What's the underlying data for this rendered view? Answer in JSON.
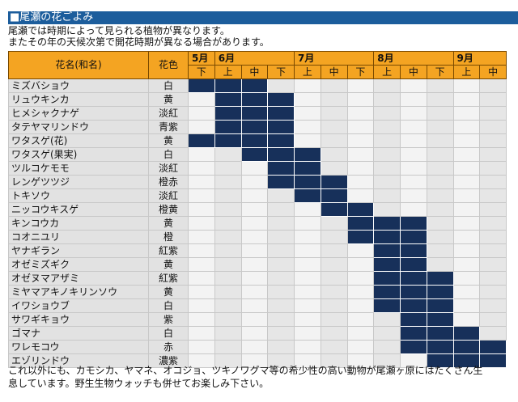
{
  "title": "■尾瀬の花ごよみ",
  "intro": [
    "尾瀬では時期によって見られる植物が異なります。",
    "またその年の天候次第で開花時期が異なる場合があります。"
  ],
  "table": {
    "header": {
      "name": "花名(和名)",
      "color": "花色",
      "months": [
        {
          "label": "5月",
          "periods": [
            "下"
          ]
        },
        {
          "label": "6月",
          "periods": [
            "上",
            "中",
            "下"
          ]
        },
        {
          "label": "7月",
          "periods": [
            "上",
            "中",
            "下"
          ]
        },
        {
          "label": "8月",
          "periods": [
            "上",
            "中",
            "下"
          ]
        },
        {
          "label": "9月",
          "periods": [
            "上",
            "中"
          ]
        }
      ]
    },
    "rows": [
      {
        "name": "ミズバショウ",
        "color": "白",
        "bloom": [
          true,
          true,
          true,
          false,
          false,
          false,
          false,
          false,
          false,
          false,
          false,
          false
        ]
      },
      {
        "name": "リュウキンカ",
        "color": "黄",
        "bloom": [
          false,
          true,
          true,
          true,
          false,
          false,
          false,
          false,
          false,
          false,
          false,
          false
        ]
      },
      {
        "name": "ヒメシャクナゲ",
        "color": "淡紅",
        "bloom": [
          false,
          true,
          true,
          true,
          false,
          false,
          false,
          false,
          false,
          false,
          false,
          false
        ]
      },
      {
        "name": "タテヤマリンドウ",
        "color": "青紫",
        "bloom": [
          false,
          true,
          true,
          true,
          false,
          false,
          false,
          false,
          false,
          false,
          false,
          false
        ]
      },
      {
        "name": "ワタスゲ(花)",
        "color": "黄",
        "bloom": [
          true,
          true,
          true,
          true,
          false,
          false,
          false,
          false,
          false,
          false,
          false,
          false
        ]
      },
      {
        "name": "ワタスゲ(果実)",
        "color": "白",
        "bloom": [
          false,
          false,
          true,
          true,
          true,
          false,
          false,
          false,
          false,
          false,
          false,
          false
        ]
      },
      {
        "name": "ツルコケモモ",
        "color": "淡紅",
        "bloom": [
          false,
          false,
          false,
          true,
          true,
          false,
          false,
          false,
          false,
          false,
          false,
          false
        ]
      },
      {
        "name": "レンゲツツジ",
        "color": "橙赤",
        "bloom": [
          false,
          false,
          false,
          true,
          true,
          true,
          false,
          false,
          false,
          false,
          false,
          false
        ]
      },
      {
        "name": "トキソウ",
        "color": "淡紅",
        "bloom": [
          false,
          false,
          false,
          false,
          true,
          true,
          false,
          false,
          false,
          false,
          false,
          false
        ]
      },
      {
        "name": "ニッコウキスゲ",
        "color": "橙黄",
        "bloom": [
          false,
          false,
          false,
          false,
          false,
          true,
          true,
          false,
          false,
          false,
          false,
          false
        ]
      },
      {
        "name": "キンコウカ",
        "color": "黄",
        "bloom": [
          false,
          false,
          false,
          false,
          false,
          false,
          true,
          true,
          true,
          false,
          false,
          false
        ]
      },
      {
        "name": "コオニユリ",
        "color": "橙",
        "bloom": [
          false,
          false,
          false,
          false,
          false,
          false,
          true,
          true,
          true,
          false,
          false,
          false
        ]
      },
      {
        "name": "ヤナギラン",
        "color": "紅紫",
        "bloom": [
          false,
          false,
          false,
          false,
          false,
          false,
          false,
          true,
          true,
          false,
          false,
          false
        ]
      },
      {
        "name": "オゼミズギク",
        "color": "黄",
        "bloom": [
          false,
          false,
          false,
          false,
          false,
          false,
          false,
          true,
          true,
          false,
          false,
          false
        ]
      },
      {
        "name": "オゼヌマアザミ",
        "color": "紅紫",
        "bloom": [
          false,
          false,
          false,
          false,
          false,
          false,
          false,
          true,
          true,
          true,
          false,
          false
        ]
      },
      {
        "name": "ミヤマアキノキリンソウ",
        "color": "黄",
        "bloom": [
          false,
          false,
          false,
          false,
          false,
          false,
          false,
          true,
          true,
          true,
          false,
          false
        ]
      },
      {
        "name": "イワショウブ",
        "color": "白",
        "bloom": [
          false,
          false,
          false,
          false,
          false,
          false,
          false,
          true,
          true,
          true,
          false,
          false
        ]
      },
      {
        "name": "サワギキョウ",
        "color": "紫",
        "bloom": [
          false,
          false,
          false,
          false,
          false,
          false,
          false,
          false,
          true,
          true,
          false,
          false
        ]
      },
      {
        "name": "ゴマナ",
        "color": "白",
        "bloom": [
          false,
          false,
          false,
          false,
          false,
          false,
          false,
          false,
          true,
          true,
          true,
          false
        ]
      },
      {
        "name": "ワレモコウ",
        "color": "赤",
        "bloom": [
          false,
          false,
          false,
          false,
          false,
          false,
          false,
          false,
          true,
          true,
          true,
          true
        ]
      },
      {
        "name": "エゾリンドウ",
        "color": "濃紫",
        "bloom": [
          false,
          false,
          false,
          false,
          false,
          false,
          false,
          false,
          false,
          true,
          true,
          true
        ]
      }
    ]
  },
  "footer": [
    "これ以外にも、カモシカ、ヤマネ、オコジョ、ツキノワグマ等の希少性の高い動物が尾瀬ヶ原にはたくさん生",
    "息しています。野生生物ウォッチも併せてお楽しみ下さい。"
  ]
}
